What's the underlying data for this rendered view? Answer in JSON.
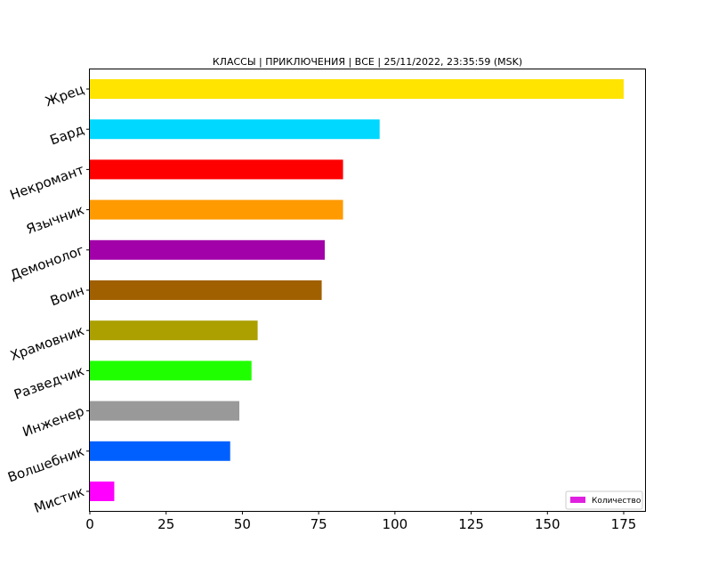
{
  "chart_data": {
    "type": "bar",
    "orientation": "horizontal",
    "title": "КЛАССЫ | ПРИКЛЮЧЕНИЯ | ВСЕ | 25/11/2022, 23:35:59 (MSK)",
    "xlabel": "",
    "ylabel": "",
    "xlim": [
      0,
      182
    ],
    "xticks": [
      0,
      25,
      50,
      75,
      100,
      125,
      150,
      175
    ],
    "grid": false,
    "legend_position": "bottom-right",
    "series": [
      {
        "name": "Количество",
        "legend_color": "#e020e0",
        "categories": [
          "Жрец",
          "Бард",
          "Некромант",
          "Язычник",
          "Демонолог",
          "Воин",
          "Храмовник",
          "Разведчик",
          "Инженер",
          "Волшебник",
          "Мистик"
        ],
        "values": [
          175,
          95,
          83,
          83,
          77,
          76,
          55,
          53,
          49,
          46,
          8
        ],
        "colors": [
          "#ffe400",
          "#00d8ff",
          "#ff0000",
          "#ff9a00",
          "#a200a9",
          "#a06000",
          "#aba000",
          "#20ff00",
          "#999999",
          "#0060ff",
          "#ff00ff"
        ]
      }
    ]
  }
}
